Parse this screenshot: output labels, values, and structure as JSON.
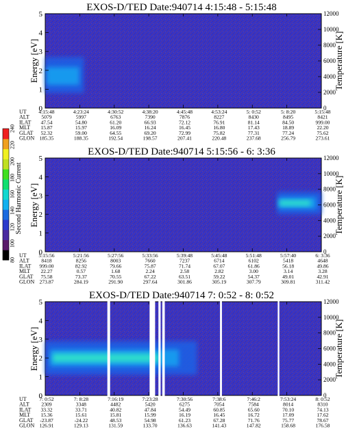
{
  "colors": {
    "background": "#3232c8",
    "noise": "#7a3a6e",
    "noise_alt": "#5a3a8e",
    "gap": "#ffffff",
    "ink": "#000000"
  },
  "colorbar": {
    "label": "Second Harmonic Current",
    "ticks": [
      "80",
      "100",
      "120",
      "140",
      "160",
      "180",
      "200",
      "220",
      "240"
    ],
    "range": [
      80,
      240
    ],
    "stops": [
      "#000000",
      "#5a1a6a",
      "#4a2aa0",
      "#2a3acc",
      "#1a6ae0",
      "#10b0f0",
      "#10d8d0",
      "#10e070",
      "#40e020",
      "#c0e020",
      "#f0f020",
      "#f0a020",
      "#f02020"
    ]
  },
  "chart_data": [
    {
      "type": "heatmap",
      "title": "EXOS-D/TED  Date:940714  4:15:48 - 5:15:48",
      "ylabel": "Energy [eV]",
      "y2label": "Temperature [K]",
      "ylim": [
        0,
        5
      ],
      "yticks": [
        "0",
        "1",
        "2",
        "3",
        "4",
        "5"
      ],
      "y2lim": [
        0,
        12000
      ],
      "y2ticks": [
        "0",
        "2000",
        "4000",
        "6000",
        "8000",
        "10000",
        "12000"
      ],
      "x_rows": [
        "UT",
        "ALT",
        "ILAT",
        "MLT",
        "GLAT",
        "GLON"
      ],
      "x_cols": [
        [
          "4:15:48",
          "4:23:24",
          "4:30:52",
          "4:38:20",
          "4:45:48",
          "4:53:24",
          "5: 0:52",
          "5: 8:20",
          "5:15:48"
        ],
        [
          "5079",
          "5997",
          "6763",
          "7390",
          "7876",
          "8227",
          "8430",
          "8495",
          "8421"
        ],
        [
          "47.54",
          "54.80",
          "61.20",
          "66.93",
          "72.12",
          "76.91",
          "81.14",
          "84.50",
          "999.00"
        ],
        [
          "15.87",
          "15.97",
          "16.09",
          "16.24",
          "16.45",
          "16.80",
          "17.43",
          "18.89",
          "22.20"
        ],
        [
          "52.32",
          "59.00",
          "64.55",
          "69.20",
          "72.99",
          "75.82",
          "77.31",
          "77.24",
          "75.62"
        ],
        [
          "185.35",
          "188.35",
          "192.54",
          "198.57",
          "207.41",
          "220.48",
          "237.68",
          "256.79",
          "273.61"
        ]
      ],
      "features": [
        {
          "name": "low-energy enhancement",
          "x_range": [
            0.0,
            0.14
          ],
          "energy_range": [
            0.8,
            2.7
          ],
          "peak_energy": 1.7,
          "level": 150
        }
      ],
      "data_gaps": []
    },
    {
      "type": "heatmap",
      "title": "EXOS-D/TED  Date:940714  5:15:56 - 6: 3:36",
      "ylabel": "Energy [eV]",
      "y2label": "Temperature [K]",
      "ylim": [
        0,
        5
      ],
      "yticks": [
        "0",
        "1",
        "2",
        "3",
        "4",
        "5"
      ],
      "y2lim": [
        0,
        12000
      ],
      "y2ticks": [
        "0",
        "2000",
        "4000",
        "6000",
        "8000",
        "10000",
        "12000"
      ],
      "x_rows": [
        "UT",
        "ALT",
        "ILAT",
        "MLT",
        "GLAT",
        "GLON"
      ],
      "x_cols": [
        [
          "5:15:56",
          "5:21:56",
          "5:27:56",
          "5:33:56",
          "5:39:48",
          "5:45:48",
          "5:51:48",
          "5:57:40",
          "6: 3:36"
        ],
        [
          "8418",
          "8256",
          "8003",
          "7660",
          "7237",
          "6714",
          "6102",
          "5418",
          "4648"
        ],
        [
          "999.00",
          "82.92",
          "79.66",
          "75.87",
          "71.74",
          "67.07",
          "61.86",
          "56.18",
          "49.86"
        ],
        [
          "22.27",
          "0.57",
          "1.68",
          "2.24",
          "2.58",
          "2.82",
          "3.00",
          "3.14",
          "3.28"
        ],
        [
          "75.58",
          "73.37",
          "70.55",
          "67.22",
          "63.51",
          "59.22",
          "54.37",
          "49.01",
          "42.91"
        ],
        [
          "273.87",
          "284.19",
          "291.90",
          "297.64",
          "301.86",
          "305.19",
          "307.79",
          "309.81",
          "311.42"
        ]
      ],
      "features": [
        {
          "name": "high-energy enhancement",
          "x_range": [
            0.84,
            1.0
          ],
          "energy_range": [
            2.0,
            3.2
          ],
          "peak_energy": 2.6,
          "level": 160
        }
      ],
      "data_gaps": []
    },
    {
      "type": "heatmap",
      "title": "EXOS-D/TED  Date:940714  7: 0:52 - 8: 0:52",
      "ylabel": "Energy [eV]",
      "y2label": "Temperature [K]",
      "ylim": [
        0,
        5
      ],
      "yticks": [
        "0",
        "1",
        "2",
        "3",
        "4",
        "5"
      ],
      "y2lim": [
        0,
        12000
      ],
      "y2ticks": [
        "0",
        "2000",
        "4000",
        "6000",
        "8000",
        "10000",
        "12000"
      ],
      "x_rows": [
        "UT",
        "ALT",
        "ILAT",
        "MLT",
        "GLAT",
        "GLON"
      ],
      "x_cols": [
        [
          "7: 0:52",
          "7: 8:28",
          "7:16:19",
          "7:23:28",
          "7:30:56",
          "7:38:6",
          "7:46:2",
          "7:53:24",
          "8: 0:52"
        ],
        [
          "2309",
          "3348",
          "4482",
          "5420",
          "6275",
          "7054",
          "7584",
          "8014",
          "8310"
        ],
        [
          "33.32",
          "33.71",
          "40.82",
          "47.84",
          "54.49",
          "60.85",
          "65.60",
          "70.10",
          "74.13"
        ],
        [
          "15.36",
          "15.61",
          "15.81",
          "15.99",
          "16.19",
          "16.45",
          "16.72",
          "17.09",
          "17.62"
        ],
        [
          "-23.87",
          "-24.22",
          "48.53",
          "54.98",
          "61.23",
          "67.28",
          "71.76",
          "75.77",
          "78.67"
        ],
        [
          "126.91",
          "129.13",
          "131.59",
          "133.70",
          "136.63",
          "141.43",
          "147.82",
          "158.68",
          "176.58"
        ]
      ],
      "features": [
        {
          "name": "low-energy enhancement",
          "x_range": [
            0.0,
            0.55
          ],
          "energy_range": [
            1.1,
            2.9
          ],
          "peak_energy": 2.0,
          "level": 170
        }
      ],
      "data_gaps": [
        [
          0.225,
          0.235
        ],
        [
          0.378,
          0.398
        ],
        [
          0.41,
          0.418
        ],
        [
          0.424,
          0.433
        ],
        [
          0.633,
          0.64
        ],
        [
          0.842,
          0.848
        ]
      ]
    }
  ]
}
